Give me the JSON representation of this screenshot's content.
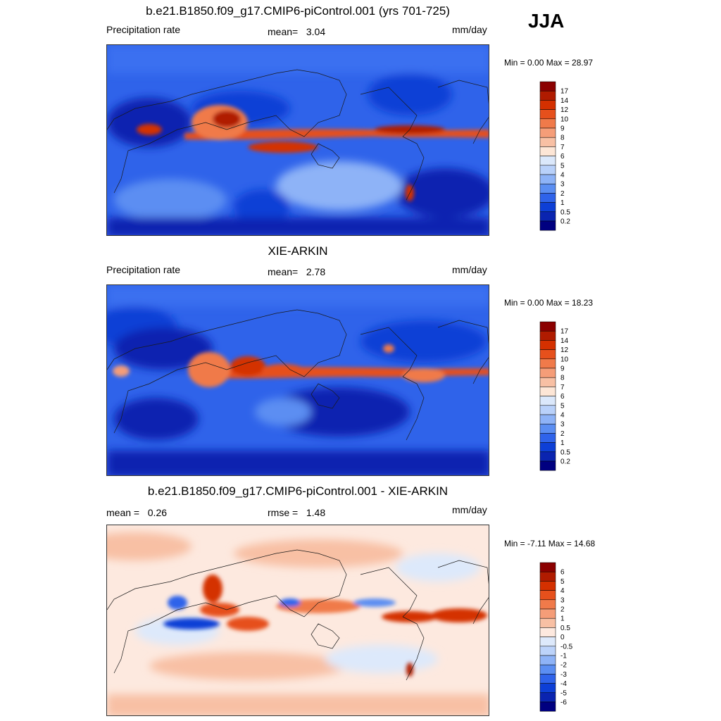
{
  "season": "JJA",
  "units": "mm/day",
  "panels": [
    {
      "title": "b.e21.B1850.f09_g17.CMIP6-piControl.001 (yrs 701-725)",
      "left_label": "Precipitation rate",
      "mid_label": "mean=",
      "mid_value": "3.04",
      "right_label": "mm/day",
      "minmax": "Min =   0.00 Max =  28.97"
    },
    {
      "title": "XIE-ARKIN",
      "left_label": "Precipitation rate",
      "mid_label": "mean=",
      "mid_value": "2.78",
      "right_label": "mm/day",
      "minmax": "Min =   0.00 Max =  18.23"
    },
    {
      "title": "b.e21.B1850.f09_g17.CMIP6-piControl.001 - XIE-ARKIN",
      "left_label": "mean =",
      "left_value": "0.26",
      "mid_label": "rmse =",
      "mid_value": "1.48",
      "right_label": "mm/day",
      "minmax": "Min =  -7.11 Max =  14.68"
    }
  ],
  "chart_data": [
    {
      "type": "heatmap",
      "title": "b.e21.B1850.f09_g17.CMIP6-piControl.001 (yrs 701-725)",
      "field": "Precipitation rate",
      "mean": 3.04,
      "min": 0.0,
      "max": 28.97,
      "units": "mm/day",
      "colorbar_levels": [
        "17",
        "14",
        "12",
        "10",
        "9",
        "8",
        "7",
        "6",
        "5",
        "4",
        "3",
        "2",
        "1",
        "0.5",
        "0.2"
      ],
      "colorbar_colors": [
        "#8b0000",
        "#b01b00",
        "#d43000",
        "#e6501c",
        "#f07a4a",
        "#f59d78",
        "#f8c0a4",
        "#fde6d6",
        "#dbe8fb",
        "#b9d1fa",
        "#8eb3f7",
        "#5b8ef2",
        "#2f63ea",
        "#0d3fd6",
        "#0a24b0",
        "#000080"
      ]
    },
    {
      "type": "heatmap",
      "title": "XIE-ARKIN",
      "field": "Precipitation rate",
      "mean": 2.78,
      "min": 0.0,
      "max": 18.23,
      "units": "mm/day",
      "colorbar_levels": [
        "17",
        "14",
        "12",
        "10",
        "9",
        "8",
        "7",
        "6",
        "5",
        "4",
        "3",
        "2",
        "1",
        "0.5",
        "0.2"
      ],
      "colorbar_colors": [
        "#8b0000",
        "#b01b00",
        "#d43000",
        "#e6501c",
        "#f07a4a",
        "#f59d78",
        "#f8c0a4",
        "#fde6d6",
        "#dbe8fb",
        "#b9d1fa",
        "#8eb3f7",
        "#5b8ef2",
        "#2f63ea",
        "#0d3fd6",
        "#0a24b0",
        "#000080"
      ]
    },
    {
      "type": "heatmap",
      "title": "b.e21.B1850.f09_g17.CMIP6-piControl.001 - XIE-ARKIN",
      "mean": 0.26,
      "rmse": 1.48,
      "min": -7.11,
      "max": 14.68,
      "units": "mm/day",
      "colorbar_levels": [
        "6",
        "5",
        "4",
        "3",
        "2",
        "1",
        "0.5",
        "0",
        "-0.5",
        "-1",
        "-2",
        "-3",
        "-4",
        "-5",
        "-6"
      ],
      "colorbar_colors": [
        "#8b0000",
        "#b01b00",
        "#d43000",
        "#e6501c",
        "#f07a4a",
        "#f59d78",
        "#f8c0a4",
        "#fde9df",
        "#dde9fb",
        "#bcd3fa",
        "#8eb3f7",
        "#5b8ef2",
        "#2f63ea",
        "#0d3fd6",
        "#0a24b0",
        "#000080"
      ]
    }
  ]
}
